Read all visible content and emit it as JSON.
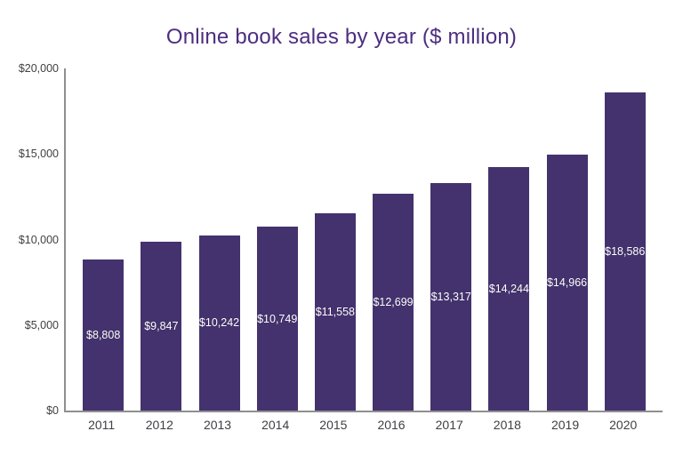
{
  "chart_data": {
    "type": "bar",
    "title": "Online book sales by year ($ million)",
    "categories": [
      "2011",
      "2012",
      "2013",
      "2014",
      "2015",
      "2016",
      "2017",
      "2018",
      "2019",
      "2020"
    ],
    "values": [
      8808,
      9847,
      10242,
      10749,
      11558,
      12699,
      13317,
      14244,
      14966,
      18586
    ],
    "bar_labels": [
      "$8,808",
      "$9,847",
      "$10,242",
      "$10,749",
      "$11,558",
      "$12,699",
      "$13,317",
      "$14,244",
      "$14,966",
      "$18,586"
    ],
    "y_ticks": [
      {
        "value": 0,
        "label": "$0"
      },
      {
        "value": 5000,
        "label": "$5,000"
      },
      {
        "value": 10000,
        "label": "$10,000"
      },
      {
        "value": 15000,
        "label": "$15,000"
      },
      {
        "value": 20000,
        "label": "$20,000"
      }
    ],
    "ylim": [
      0,
      20000
    ],
    "xlabel": "",
    "ylabel": "",
    "grid": false,
    "legend": "none",
    "colors": {
      "bar": "#44326e",
      "title": "#4d2d80",
      "axis_line": "#8f8f8f",
      "tick_text": "#3f3f44",
      "bar_label_text": "#ffffff",
      "background": "#ffffff"
    }
  }
}
